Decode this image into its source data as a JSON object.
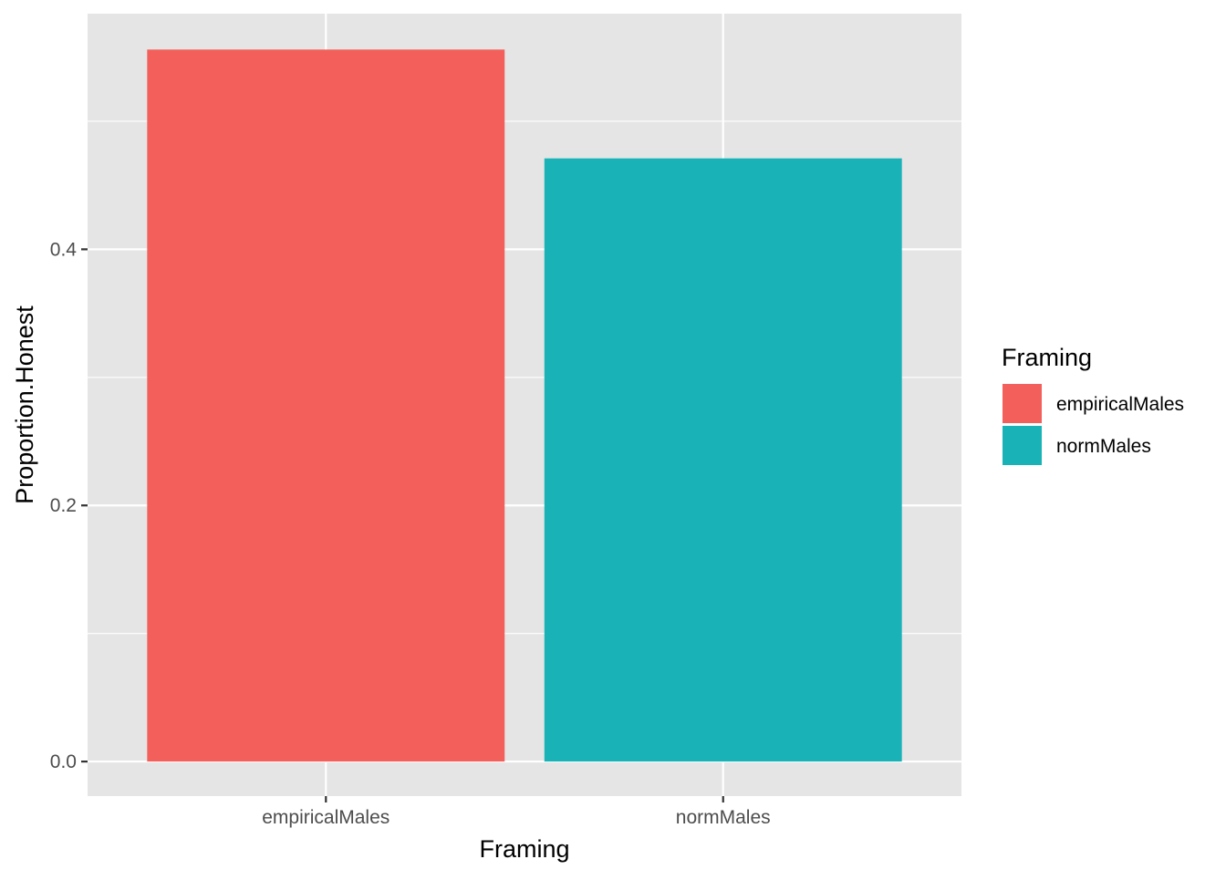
{
  "chart_data": {
    "type": "bar",
    "categories": [
      "empiricalMales",
      "normMales"
    ],
    "values": [
      0.556,
      0.471
    ],
    "xlabel": "Framing",
    "ylabel": "Proportion.Honest",
    "ylim": [
      -0.027,
      0.584
    ],
    "yticks": [
      0.0,
      0.2,
      0.4
    ],
    "ytick_labels": [
      "0.0",
      "0.2",
      "0.4"
    ],
    "minor_yticks": [
      0.1,
      0.3,
      0.5
    ],
    "grid": true,
    "legend": {
      "title": "Framing",
      "position": "right",
      "entries": [
        "empiricalMales",
        "normMales"
      ]
    },
    "colors": [
      "#F8766D",
      "#00BFC4"
    ],
    "bar_colors": [
      "#F3605B",
      "#19B3B7"
    ],
    "panel_background": "#E5E5E5",
    "grid_color": "#FFFFFF"
  }
}
